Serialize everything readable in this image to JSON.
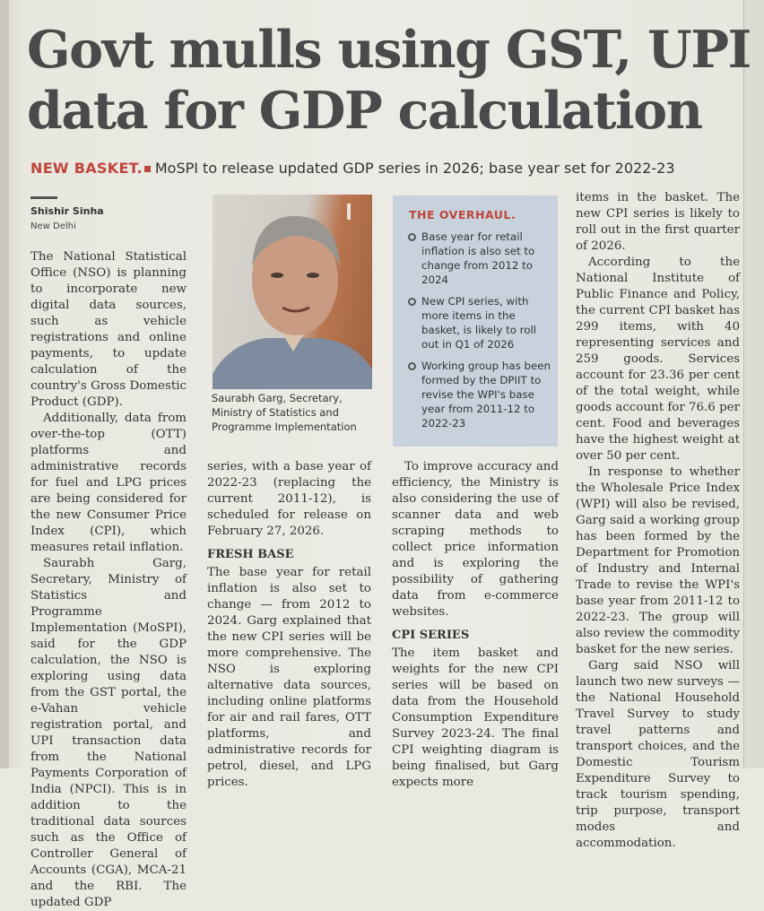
{
  "headline": {
    "line1": "Govt mulls using GST, UPI",
    "line2": "data for GDP calculation"
  },
  "deck": {
    "tag": "NEW BASKET.",
    "text": "MoSPI to release updated GDP series in 2026; base year set for 2022-23"
  },
  "byline": {
    "author": "Shishir Sinha",
    "dateline": "New Delhi"
  },
  "photo_caption": "Saurabh Garg, Secretary, Ministry of Statistics and Programme Implementation",
  "overhaul": {
    "title": "THE OVERHAUL.",
    "items": [
      "Base year for retail inflation is also set to change from 2012 to 2024",
      "New CPI series, with more items in the basket, is likely to roll out in Q1 of 2026",
      "Working group has been formed by the DPIIT to revise the WPI's base year from 2011-12 to 2022-23"
    ]
  },
  "col1": {
    "p1": "The National Statistical Office (NSO) is planning to incorporate new digital data sources, such as vehicle registrations and online payments, to update calculation of the country's Gross Domestic Product (GDP).",
    "p2": "Additionally, data from over-the-top (OTT) platforms and administrative records for fuel and LPG prices are being considered for the new Consumer Price Index (CPI), which measures retail inflation.",
    "p3": "Saurabh Garg, Secretary, Ministry of Statistics and Programme Implementation (MoSPI), said for the GDP calculation, the NSO is exploring using data from the GST portal, the e-Vahan vehicle registration portal, and UPI transaction data from the National Payments Corporation of India (NPCI). This is in addition to the traditional data sources such as the Office of Controller General of Accounts (CGA), MCA-21 and the RBI. The updated GDP"
  },
  "col2": {
    "p1": "series, with a base year of 2022-23 (replacing the current 2011-12), is scheduled for release on February 27, 2026.",
    "heading": "FRESH BASE",
    "p2": "The base year for retail inflation is also set to change — from 2012 to 2024. Garg explained that the new CPI series will be more comprehensive. The NSO is exploring alternative data sources, including online platforms for air and rail fares, OTT platforms, and administrative records for petrol, diesel, and LPG prices."
  },
  "col3": {
    "p1": "To improve accuracy and efficiency, the Ministry is also considering the use of scanner data and web scraping methods to collect price information and is exploring the possibility of gathering data from e-commerce websites.",
    "heading": "CPI SERIES",
    "p2": "The item basket and weights for the new CPI series will be based on data from the Household Consumption Expenditure Survey 2023-24. The final CPI weighting diagram is being finalised, but Garg expects more"
  },
  "col4": {
    "p1": "items in the basket. The new CPI series is likely to roll out in the first quarter of 2026.",
    "p2": "According to the National Institute of Public Finance and Policy, the current CPI basket has 299 items, with 40 representing services and 259 goods. Services account for 23.36 per cent of the total weight, while goods account for 76.6 per cent. Food and beverages have the highest weight at over 50 per cent.",
    "p3": "In response to whether the Wholesale Price Index (WPI) will also be revised, Garg said a working group has been formed by the Department for Promotion of Industry and Internal Trade to revise the WPI's base year from 2011-12 to 2022-23. The group will also review the commodity basket for the new series.",
    "p4": "Garg said NSO will launch two new surveys — the National Household Travel Survey to study travel patterns and transport choices, and the Domestic Tourism Expenditure Survey to track tourism spending, trip purpose, transport modes and accommodation."
  },
  "colors": {
    "accent": "#c0453a",
    "box": "#c8d2dd",
    "paper": "#ecebe5"
  }
}
